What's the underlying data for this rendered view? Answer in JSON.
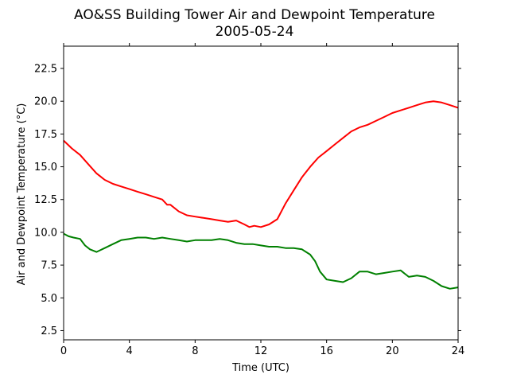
{
  "chart_data": {
    "type": "line",
    "title": "AO&SS Building Tower Air and Dewpoint Temperature",
    "subtitle": "2005-05-24",
    "xlabel": "Time (UTC)",
    "ylabel": "Air and Dewpoint Temperature (°C)",
    "xlim": [
      0,
      24
    ],
    "ylim": [
      1.8,
      24.2
    ],
    "xticks": [
      0,
      4,
      8,
      12,
      16,
      20,
      24
    ],
    "xtick_labels": [
      "0",
      "4",
      "8",
      "12",
      "16",
      "20",
      "24"
    ],
    "yticks": [
      2.5,
      5.0,
      7.5,
      10.0,
      12.5,
      15.0,
      17.5,
      20.0,
      22.5
    ],
    "ytick_labels": [
      "2.5",
      "5.0",
      "7.5",
      "10.0",
      "12.5",
      "15.0",
      "17.5",
      "20.0",
      "22.5"
    ],
    "grid": false,
    "series": [
      {
        "color": "#ff0000",
        "x": [
          0,
          0.5,
          1,
          1.5,
          2,
          2.5,
          3,
          3.5,
          4,
          4.5,
          5,
          5.5,
          6,
          6.3,
          6.5,
          7,
          7.5,
          8,
          8.5,
          9,
          9.5,
          10,
          10.5,
          11,
          11.3,
          11.6,
          12,
          12.5,
          13,
          13.5,
          14,
          14.5,
          15,
          15.5,
          16,
          16.5,
          17,
          17.5,
          18,
          18.5,
          19,
          19.5,
          20,
          20.5,
          21,
          21.5,
          22,
          22.5,
          23,
          23.5,
          24
        ],
        "values": [
          17.0,
          16.4,
          15.9,
          15.2,
          14.5,
          14.0,
          13.7,
          13.5,
          13.3,
          13.1,
          12.9,
          12.7,
          12.5,
          12.1,
          12.1,
          11.6,
          11.3,
          11.2,
          11.1,
          11.0,
          10.9,
          10.8,
          10.9,
          10.6,
          10.4,
          10.5,
          10.4,
          10.6,
          11.0,
          12.2,
          13.2,
          14.2,
          15.0,
          15.7,
          16.2,
          16.7,
          17.2,
          17.7,
          18.0,
          18.2,
          18.5,
          18.8,
          19.1,
          19.3,
          19.5,
          19.7,
          19.9,
          20.0,
          19.9,
          19.7,
          19.5
        ]
      },
      {
        "color": "#008000",
        "x": [
          0,
          0.3,
          0.6,
          1,
          1.3,
          1.6,
          2,
          2.5,
          3,
          3.5,
          4,
          4.5,
          5,
          5.5,
          6,
          6.5,
          7,
          7.5,
          8,
          8.5,
          9,
          9.5,
          10,
          10.5,
          11,
          11.5,
          12,
          12.5,
          13,
          13.5,
          14,
          14.5,
          15,
          15.3,
          15.6,
          16,
          16.5,
          17,
          17.5,
          18,
          18.5,
          19,
          19.5,
          20,
          20.5,
          21,
          21.5,
          22,
          22.5,
          23,
          23.5,
          24
        ],
        "values": [
          9.9,
          9.7,
          9.6,
          9.5,
          9.0,
          8.7,
          8.5,
          8.8,
          9.1,
          9.4,
          9.5,
          9.6,
          9.6,
          9.5,
          9.6,
          9.5,
          9.4,
          9.3,
          9.4,
          9.4,
          9.4,
          9.5,
          9.4,
          9.2,
          9.1,
          9.1,
          9.0,
          8.9,
          8.9,
          8.8,
          8.8,
          8.7,
          8.3,
          7.8,
          7.0,
          6.4,
          6.3,
          6.2,
          6.5,
          7.0,
          7.0,
          6.8,
          6.9,
          7.0,
          7.1,
          6.6,
          6.7,
          6.6,
          6.3,
          5.9,
          5.7,
          5.8
        ]
      }
    ]
  }
}
